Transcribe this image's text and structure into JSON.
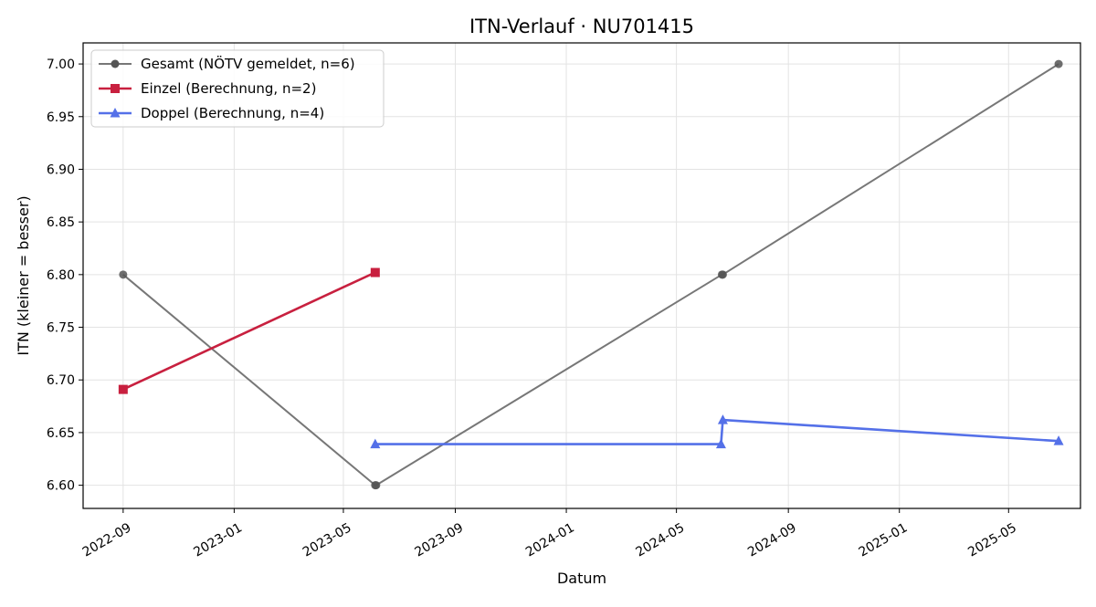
{
  "chart_data": {
    "type": "line",
    "title": "ITN-Verlauf · NU701415",
    "xlabel": "Datum",
    "ylabel": "ITN  (kleiner = besser)",
    "x_axis_type": "date",
    "xlim": [
      "2022-07-19",
      "2025-07-19"
    ],
    "ylim": [
      6.578,
      7.02
    ],
    "x_ticks": [
      "2022-09-01",
      "2023-01-01",
      "2023-05-01",
      "2023-09-01",
      "2024-01-01",
      "2024-05-01",
      "2024-09-01",
      "2025-01-01",
      "2025-05-01"
    ],
    "x_tick_labels": [
      "2022-09",
      "2023-01",
      "2023-05",
      "2023-09",
      "2024-01",
      "2024-05",
      "2024-09",
      "2025-01",
      "2025-05"
    ],
    "y_ticks": [
      6.6,
      6.65,
      6.7,
      6.75,
      6.8,
      6.85,
      6.9,
      6.95,
      7.0
    ],
    "y_tick_labels": [
      "6.60",
      "6.65",
      "6.70",
      "6.75",
      "6.80",
      "6.85",
      "6.90",
      "6.95",
      "7.00"
    ],
    "grid": true,
    "legend_position": "top-left",
    "series": [
      {
        "name": "Gesamt (NÖTV gemeldet, n=6)",
        "color": "#777777",
        "marker": "circle",
        "points": [
          {
            "x": "2022-09-01",
            "y": 6.8
          },
          {
            "x": "2023-06-05",
            "y": 6.6
          },
          {
            "x": "2023-06-06",
            "y": 6.6
          },
          {
            "x": "2024-06-20",
            "y": 6.8
          },
          {
            "x": "2024-06-21",
            "y": 6.8
          },
          {
            "x": "2025-06-25",
            "y": 7.0
          }
        ]
      },
      {
        "name": "Einzel (Berechnung, n=2)",
        "color": "#c8203f",
        "marker": "square",
        "points": [
          {
            "x": "2022-09-01",
            "y": 6.691
          },
          {
            "x": "2023-06-05",
            "y": 6.802
          }
        ]
      },
      {
        "name": "Doppel (Berechnung, n=4)",
        "color": "#5470e8",
        "marker": "triangle",
        "points": [
          {
            "x": "2023-06-05",
            "y": 6.639
          },
          {
            "x": "2024-06-19",
            "y": 6.639
          },
          {
            "x": "2024-06-21",
            "y": 6.662
          },
          {
            "x": "2025-06-25",
            "y": 6.642
          }
        ]
      }
    ]
  }
}
